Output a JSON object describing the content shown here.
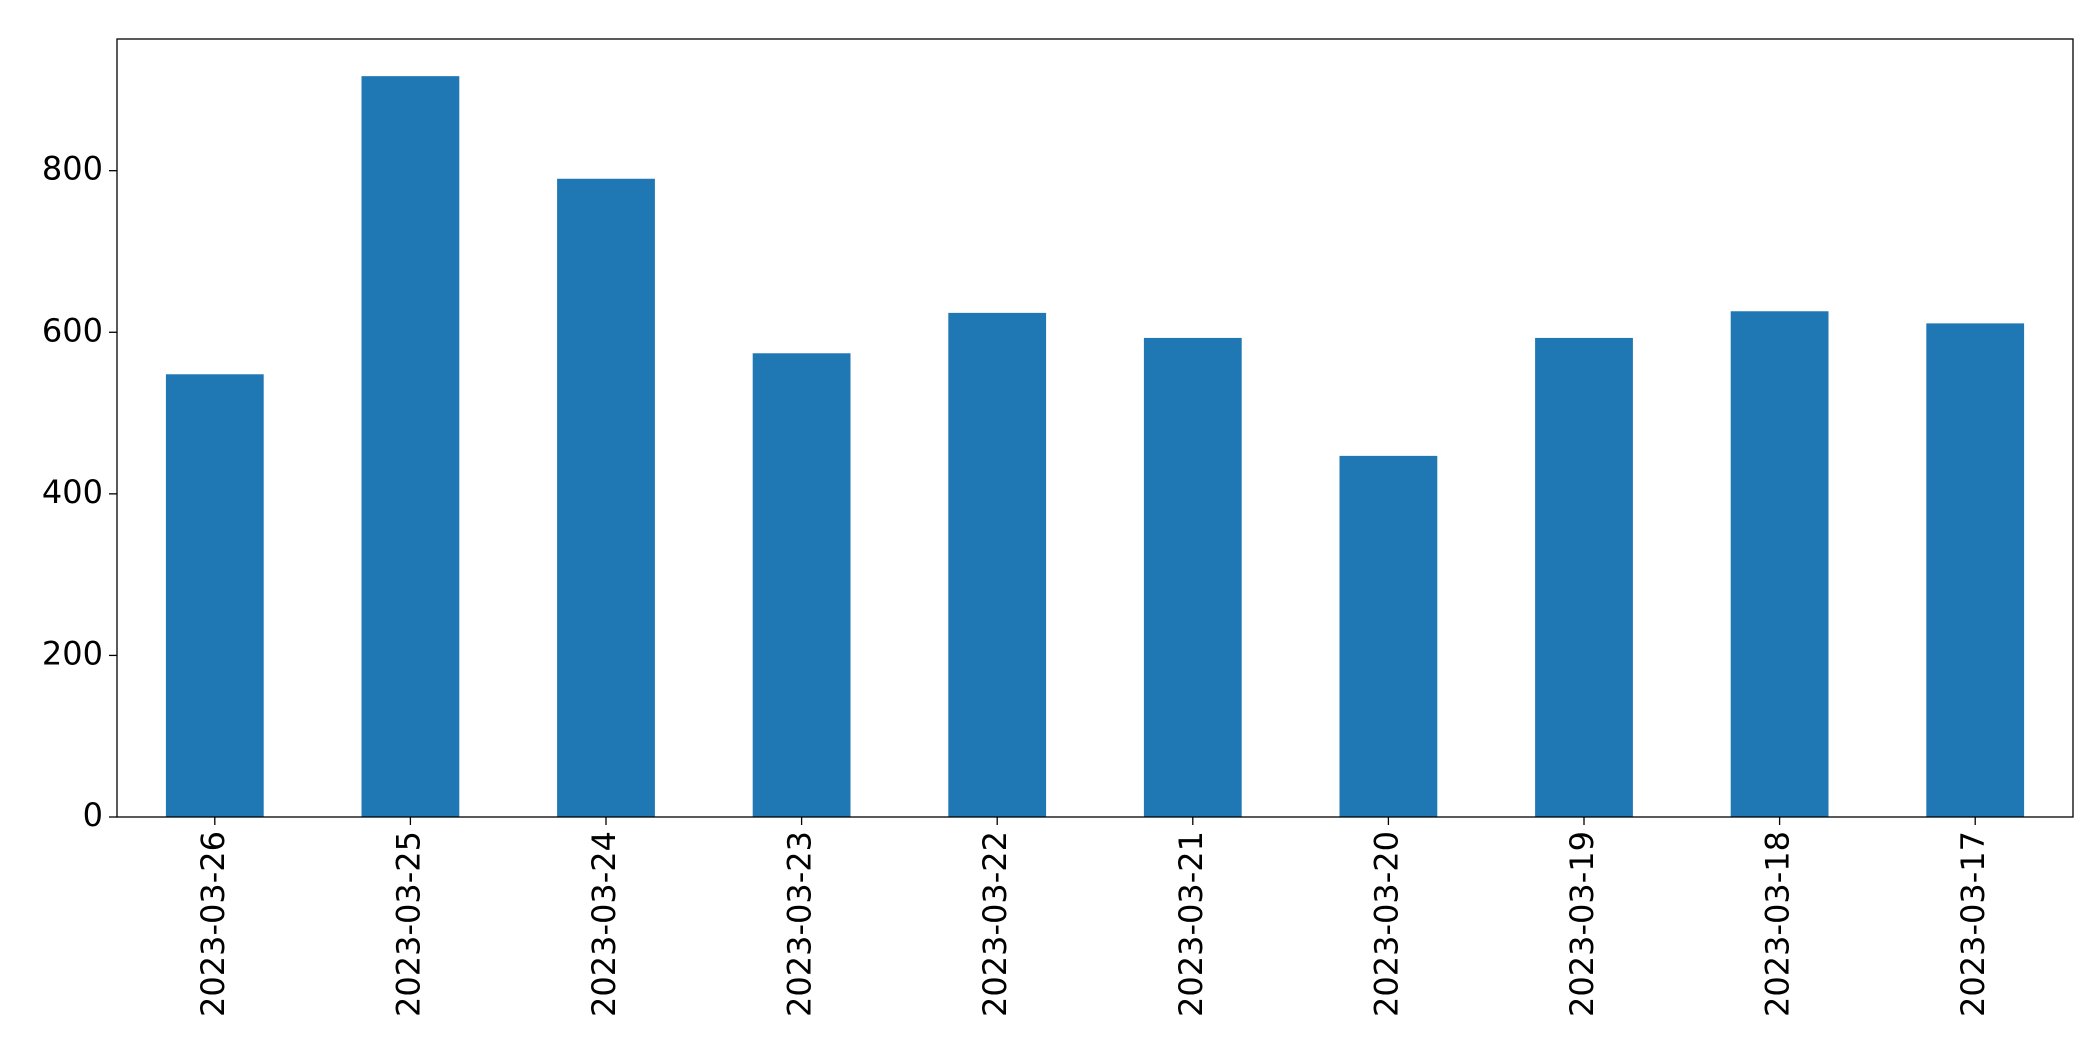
{
  "chart_data": {
    "type": "bar",
    "categories": [
      "2023-03-26",
      "2023-03-25",
      "2023-03-24",
      "2023-03-23",
      "2023-03-22",
      "2023-03-21",
      "2023-03-20",
      "2023-03-19",
      "2023-03-18",
      "2023-03-17"
    ],
    "values": [
      548,
      917,
      790,
      574,
      624,
      593,
      447,
      593,
      626,
      611
    ],
    "color": "#1f77b4",
    "ylim": [
      0,
      963
    ],
    "yticks": [
      0,
      200,
      400,
      600,
      800
    ],
    "grid": false
  }
}
